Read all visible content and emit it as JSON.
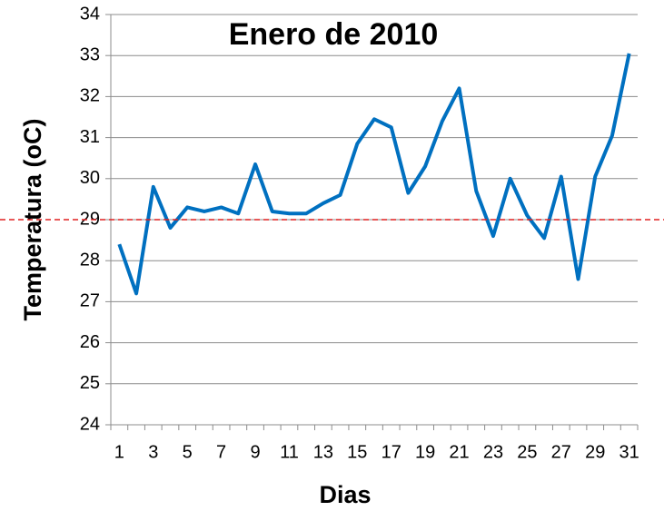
{
  "chart_data": {
    "type": "line",
    "title": "Enero de 2010",
    "xlabel": "Dias",
    "ylabel": "Temperatura (oC)",
    "x": [
      1,
      2,
      3,
      4,
      5,
      6,
      7,
      8,
      9,
      10,
      11,
      12,
      13,
      14,
      15,
      16,
      17,
      18,
      19,
      20,
      21,
      22,
      23,
      24,
      25,
      26,
      27,
      28,
      29,
      30,
      31
    ],
    "series": [
      {
        "name": "Temperatura",
        "color": "#0070c0",
        "values": [
          28.4,
          27.2,
          29.8,
          28.8,
          29.3,
          29.2,
          29.3,
          29.15,
          30.35,
          29.2,
          29.15,
          29.15,
          29.4,
          29.6,
          30.85,
          31.45,
          31.25,
          29.65,
          30.3,
          31.4,
          32.2,
          29.7,
          28.6,
          30.0,
          29.1,
          28.55,
          30.05,
          27.55,
          30.05,
          31.05,
          33.05
        ]
      }
    ],
    "xlim": [
      0.5,
      31.5
    ],
    "xticks": [
      1,
      3,
      5,
      7,
      9,
      11,
      13,
      15,
      17,
      19,
      21,
      23,
      25,
      27,
      29,
      31
    ],
    "ylim": [
      24,
      34
    ],
    "yticks": [
      24,
      25,
      26,
      27,
      28,
      29,
      30,
      31,
      32,
      33,
      34
    ],
    "grid": true,
    "reference_line": {
      "value": 29,
      "color": "#e02020",
      "style": "dashed"
    }
  }
}
